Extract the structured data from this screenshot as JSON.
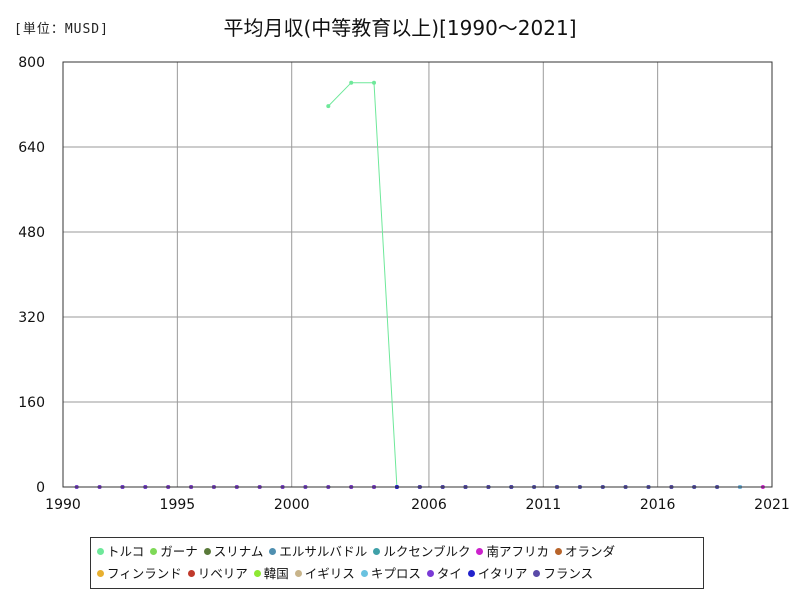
{
  "header": {
    "unit_label": "[単位：MUSD]",
    "title": "平均月収(中等教育以上)[1990～2021]"
  },
  "chart_data": {
    "type": "line",
    "title": "平均月収(中等教育以上)[1990～2021]",
    "xlabel": "",
    "ylabel": "",
    "xlim": [
      1990,
      2021
    ],
    "ylim": [
      0,
      800
    ],
    "xticks": [
      1990,
      1995,
      2000,
      2006,
      2011,
      2016,
      2021
    ],
    "yticks": [
      0,
      160,
      320,
      480,
      640,
      800
    ],
    "grid": true,
    "legend_position": "bottom",
    "series": [
      {
        "name": "トルコ",
        "color": "#6ee89a",
        "points": [
          [
            2001.6,
            717
          ],
          [
            2002.6,
            761
          ],
          [
            2003.6,
            761
          ],
          [
            2004.6,
            0
          ],
          [
            2005.6,
            0
          ],
          [
            2006.6,
            0
          ],
          [
            2007.6,
            0
          ],
          [
            2008.6,
            0
          ],
          [
            2009.6,
            0
          ],
          [
            2010.6,
            0
          ],
          [
            2011.6,
            0
          ],
          [
            2012.6,
            0
          ],
          [
            2013.6,
            0
          ],
          [
            2014.6,
            0
          ],
          [
            2015.6,
            0
          ],
          [
            2016.6,
            0
          ],
          [
            2017.6,
            0
          ],
          [
            2018.6,
            0
          ]
        ]
      },
      {
        "name": "ガーナ",
        "color": "#7ed957",
        "points": [
          [
            1990.6,
            0
          ],
          [
            1996.6,
            0
          ],
          [
            1997.6,
            0
          ],
          [
            2008.6,
            0
          ],
          [
            2011.6,
            0
          ],
          [
            2014.6,
            0
          ]
        ]
      },
      {
        "name": "スリナム",
        "color": "#5a7a3a",
        "points": [
          [
            1991.6,
            0
          ],
          [
            1992.6,
            0
          ],
          [
            1993.6,
            0
          ],
          [
            1994.6,
            0
          ],
          [
            1995.6,
            0
          ],
          [
            1996.6,
            0
          ],
          [
            1997.6,
            0
          ],
          [
            1998.6,
            0
          ]
        ]
      },
      {
        "name": "エルサルバドル",
        "color": "#4f8fb0",
        "points": [
          [
            1992.6,
            0
          ],
          [
            1993.6,
            0
          ],
          [
            1994.6,
            0
          ],
          [
            1995.6,
            0
          ],
          [
            1998.6,
            0
          ],
          [
            1999.6,
            0
          ],
          [
            2000.6,
            0
          ],
          [
            2001.6,
            0
          ],
          [
            2002.6,
            0
          ],
          [
            2003.6,
            0
          ],
          [
            2004.6,
            0
          ],
          [
            2005.6,
            0
          ],
          [
            2006.6,
            0
          ],
          [
            2007.6,
            0
          ],
          [
            2008.6,
            0
          ],
          [
            2009.6,
            0
          ],
          [
            2010.6,
            0
          ],
          [
            2011.6,
            0
          ],
          [
            2012.6,
            0
          ],
          [
            2013.6,
            0
          ],
          [
            2014.6,
            0
          ],
          [
            2015.6,
            0
          ],
          [
            2016.6,
            0
          ],
          [
            2017.6,
            0
          ],
          [
            2018.6,
            0
          ],
          [
            2019.6,
            0
          ]
        ]
      },
      {
        "name": "ルクセンブルク",
        "color": "#3fa0a8",
        "points": [
          [
            2005.6,
            0
          ],
          [
            2007.6,
            0
          ],
          [
            2009.6,
            0
          ],
          [
            2011.6,
            0
          ],
          [
            2013.6,
            0
          ],
          [
            2015.6,
            0
          ],
          [
            2017.6,
            0
          ]
        ]
      },
      {
        "name": "南アフリカ",
        "color": "#cc22cc",
        "points": [
          [
            2019.6,
            0
          ],
          [
            2020.6,
            0
          ]
        ]
      },
      {
        "name": "オランダ",
        "color": "#b8642a",
        "points": [
          [
            2002.6,
            0
          ],
          [
            2003.6,
            0
          ],
          [
            2004.6,
            0
          ]
        ]
      },
      {
        "name": "フィンランド",
        "color": "#e8b030",
        "points": [
          [
            1994.6,
            0
          ],
          [
            1995.6,
            0
          ],
          [
            1996.6,
            0
          ],
          [
            1997.6,
            0
          ],
          [
            1998.6,
            0
          ]
        ]
      },
      {
        "name": "リベリア",
        "color": "#c0392b",
        "points": [
          [
            2016.6,
            0
          ]
        ]
      },
      {
        "name": "韓国",
        "color": "#8ee832",
        "points": [
          [
            1996.6,
            0
          ],
          [
            1997.6,
            0
          ],
          [
            1998.6,
            0
          ],
          [
            1999.6,
            0
          ],
          [
            2000.6,
            0
          ],
          [
            2001.6,
            0
          ]
        ]
      },
      {
        "name": "イギリス",
        "color": "#c8b48a",
        "points": [
          [
            1997.6,
            0
          ],
          [
            1998.6,
            0
          ],
          [
            1999.6,
            0
          ]
        ]
      },
      {
        "name": "キプロス",
        "color": "#6ac2e0",
        "points": [
          [
            2008.6,
            0
          ],
          [
            2009.6,
            0
          ],
          [
            2010.6,
            0
          ],
          [
            2011.6,
            0
          ],
          [
            2012.6,
            0
          ],
          [
            2013.6,
            0
          ],
          [
            2014.6,
            0
          ],
          [
            2015.6,
            0
          ],
          [
            2016.6,
            0
          ],
          [
            2017.6,
            0
          ],
          [
            2018.6,
            0
          ],
          [
            2019.6,
            0
          ]
        ]
      },
      {
        "name": "タイ",
        "color": "#7a3ad6",
        "points": [
          [
            1990.6,
            0
          ],
          [
            1991.6,
            0
          ],
          [
            1992.6,
            0
          ],
          [
            1993.6,
            0
          ],
          [
            1994.6,
            0
          ],
          [
            1995.6,
            0
          ],
          [
            1996.6,
            0
          ],
          [
            1997.6,
            0
          ],
          [
            1998.6,
            0
          ],
          [
            1999.6,
            0
          ],
          [
            2000.6,
            0
          ],
          [
            2001.6,
            0
          ],
          [
            2002.6,
            0
          ],
          [
            2003.6,
            0
          ],
          [
            2004.6,
            0
          ],
          [
            2005.6,
            0
          ]
        ]
      },
      {
        "name": "イタリア",
        "color": "#2222cc",
        "points": [
          [
            2004.6,
            0
          ],
          [
            2005.6,
            0
          ],
          [
            2006.6,
            0
          ],
          [
            2007.6,
            0
          ],
          [
            2008.6,
            0
          ],
          [
            2009.6,
            0
          ]
        ]
      },
      {
        "name": "フランス",
        "color": "#5a4aa8",
        "points": [
          [
            2005.6,
            0
          ],
          [
            2006.6,
            0
          ],
          [
            2007.6,
            0
          ],
          [
            2008.6,
            0
          ],
          [
            2009.6,
            0
          ],
          [
            2010.6,
            0
          ],
          [
            2011.6,
            0
          ],
          [
            2012.6,
            0
          ],
          [
            2013.6,
            0
          ],
          [
            2014.6,
            0
          ],
          [
            2015.6,
            0
          ],
          [
            2016.6,
            0
          ],
          [
            2017.6,
            0
          ],
          [
            2018.6,
            0
          ]
        ]
      }
    ]
  }
}
